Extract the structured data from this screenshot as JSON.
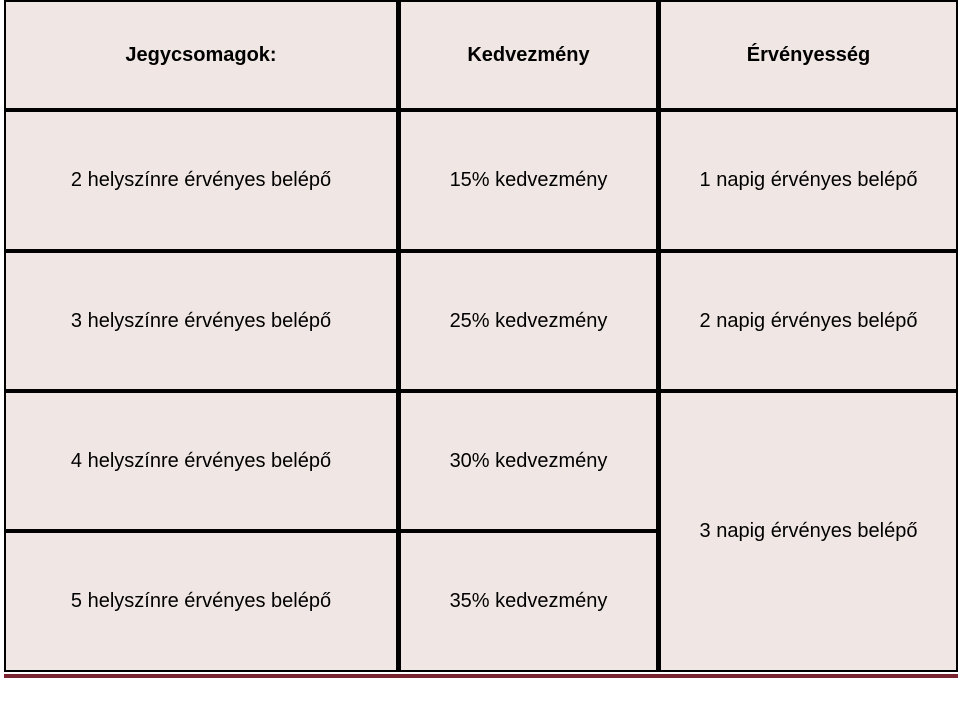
{
  "table": {
    "headers": [
      "Jegycsomagok:",
      "Kedvezmény",
      "Érvényesség"
    ],
    "packages": [
      "2 helyszínre érvényes belépő",
      "3 helyszínre érvényes belépő",
      "4 helyszínre érvényes belépő",
      "5 helyszínre érvényes belépő"
    ],
    "discounts": [
      "15% kedvezmény",
      "25% kedvezmény",
      "30% kedvezmény",
      "35% kedvezmény"
    ],
    "validity": [
      "1 napig érvényes belépő",
      "2 napig érvényes belépő",
      "3 napig érvényes belépő"
    ]
  },
  "colors": {
    "cell_background": "#f0e6e4",
    "grid_lines": "#000000",
    "bottom_rule": "#7a2430"
  }
}
